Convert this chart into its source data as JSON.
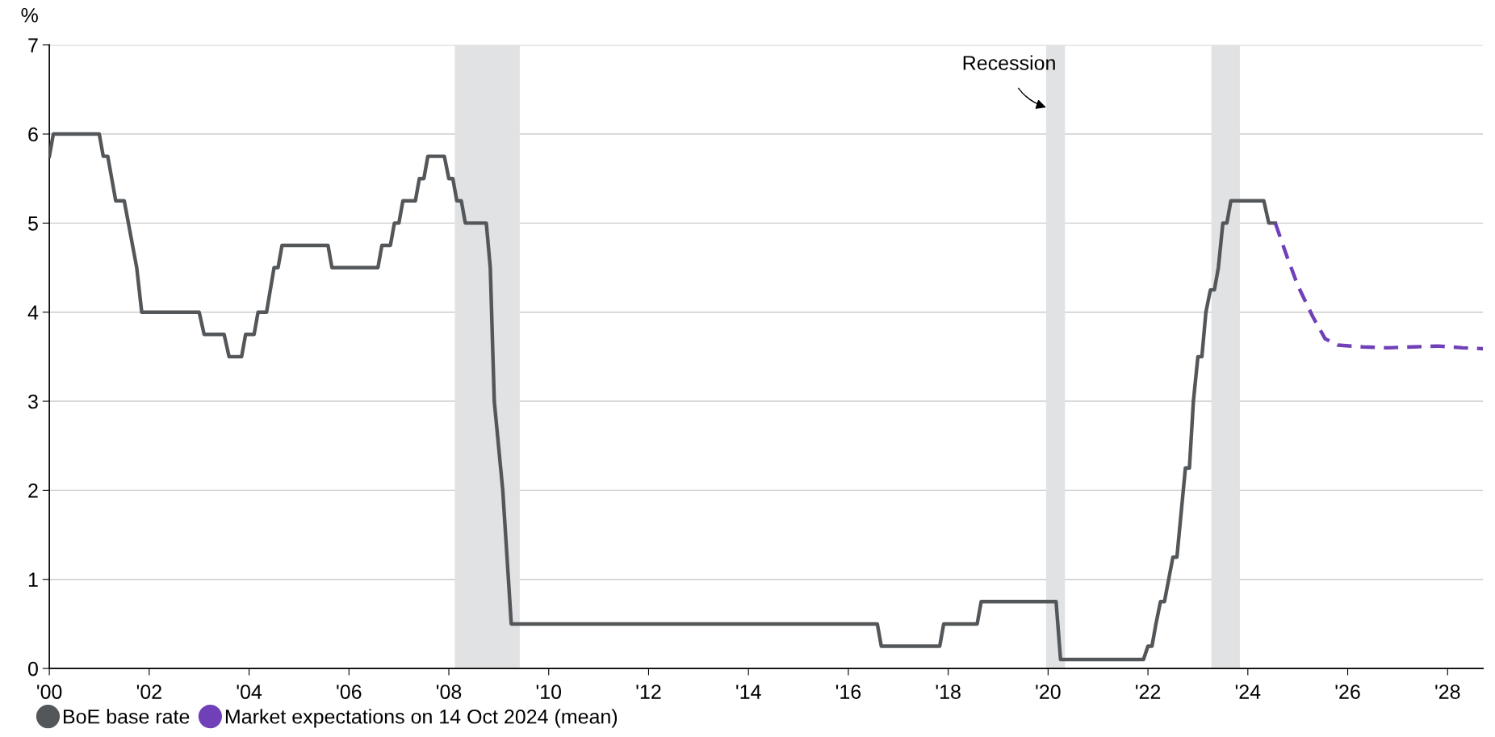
{
  "chart_data": {
    "type": "line",
    "ylabel": "%",
    "xlim": [
      2000,
      2028.71
    ],
    "ylim": [
      0,
      7
    ],
    "yticks": [
      0,
      1,
      2,
      3,
      4,
      5,
      6,
      7
    ],
    "xticks": [
      {
        "value": 2000,
        "label": "'00"
      },
      {
        "value": 2002,
        "label": "'02"
      },
      {
        "value": 2004,
        "label": "'04"
      },
      {
        "value": 2006,
        "label": "'06"
      },
      {
        "value": 2008,
        "label": "'08"
      },
      {
        "value": 2010,
        "label": "'10"
      },
      {
        "value": 2012,
        "label": "'12"
      },
      {
        "value": 2014,
        "label": "'14"
      },
      {
        "value": 2016,
        "label": "'16"
      },
      {
        "value": 2018,
        "label": "'18"
      },
      {
        "value": 2020,
        "label": "'20"
      },
      {
        "value": 2022,
        "label": "'22"
      },
      {
        "value": 2024,
        "label": "'24"
      },
      {
        "value": 2026,
        "label": "'26"
      },
      {
        "value": 2028,
        "label": "'28"
      }
    ],
    "grid": "y",
    "legend": "bottom left",
    "bands": [
      {
        "axis": "x",
        "from": 2008.12,
        "to": 2009.42,
        "color": "#e1e2e4"
      },
      {
        "axis": "x",
        "from": 2019.96,
        "to": 2020.34,
        "color": "#e1e2e4"
      },
      {
        "axis": "x",
        "from": 2023.27,
        "to": 2023.84,
        "color": "#e1e2e4"
      }
    ],
    "annotations": [
      {
        "text": "Recession",
        "x": 2019.96,
        "y": 6.3
      }
    ],
    "series": [
      {
        "name": "BoE base rate",
        "color": "#54575a",
        "line_style": "solid",
        "x": [
          2000.0,
          2000.08,
          2001.0,
          2001.08,
          2001.17,
          2001.33,
          2001.5,
          2001.75,
          2001.85,
          2003.0,
          2003.1,
          2003.5,
          2003.6,
          2003.85,
          2003.93,
          2004.1,
          2004.18,
          2004.35,
          2004.5,
          2004.58,
          2004.66,
          2005.58,
          2005.66,
          2006.58,
          2006.66,
          2006.83,
          2006.91,
          2007.0,
          2007.08,
          2007.33,
          2007.41,
          2007.5,
          2007.58,
          2007.91,
          2008.0,
          2008.08,
          2008.16,
          2008.25,
          2008.33,
          2008.75,
          2008.83,
          2008.91,
          2009.08,
          2009.25,
          2016.58,
          2016.66,
          2017.83,
          2017.91,
          2018.58,
          2018.66,
          2020.16,
          2020.25,
          2021.91,
          2022.0,
          2022.08,
          2022.16,
          2022.25,
          2022.33,
          2022.5,
          2022.58,
          2022.75,
          2022.83,
          2022.91,
          2023.0,
          2023.08,
          2023.16,
          2023.25,
          2023.33,
          2023.41,
          2023.5,
          2023.58,
          2023.66,
          2024.32,
          2024.42,
          2024.55
        ],
        "values": [
          5.75,
          6.0,
          6.0,
          5.75,
          5.75,
          5.25,
          5.25,
          4.5,
          4.0,
          4.0,
          3.75,
          3.75,
          3.5,
          3.5,
          3.75,
          3.75,
          4.0,
          4.0,
          4.5,
          4.5,
          4.75,
          4.75,
          4.5,
          4.5,
          4.75,
          4.75,
          5.0,
          5.0,
          5.25,
          5.25,
          5.5,
          5.5,
          5.75,
          5.75,
          5.5,
          5.5,
          5.25,
          5.25,
          5.0,
          5.0,
          4.5,
          3.0,
          2.0,
          0.5,
          0.5,
          0.25,
          0.25,
          0.5,
          0.5,
          0.75,
          0.75,
          0.1,
          0.1,
          0.25,
          0.25,
          0.5,
          0.75,
          0.75,
          1.25,
          1.25,
          2.25,
          2.25,
          3.0,
          3.5,
          3.5,
          4.0,
          4.25,
          4.25,
          4.5,
          5.0,
          5.0,
          5.25,
          5.25,
          5.0,
          5.0
        ]
      },
      {
        "name": "Market expectations on 14 Oct 2024 (mean)",
        "color": "#7040b8",
        "line_style": "dashed",
        "x": [
          2024.55,
          2024.8,
          2025.0,
          2025.3,
          2025.55,
          2025.8,
          2026.3,
          2026.8,
          2027.3,
          2027.8,
          2028.3,
          2028.71
        ],
        "values": [
          5.0,
          4.6,
          4.3,
          3.95,
          3.7,
          3.63,
          3.61,
          3.6,
          3.61,
          3.62,
          3.6,
          3.59
        ]
      }
    ]
  }
}
